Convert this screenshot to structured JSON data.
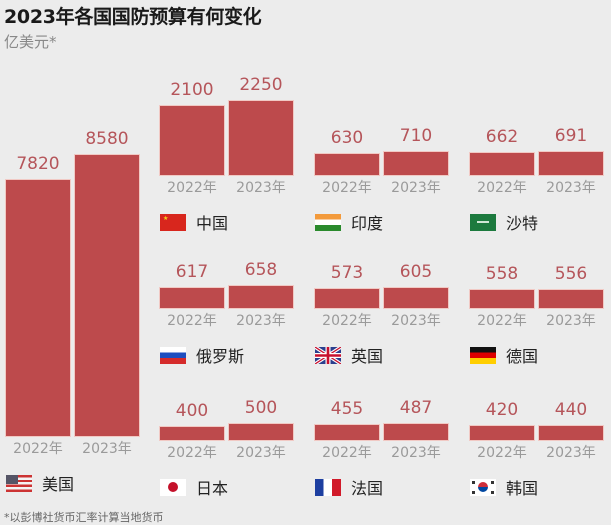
{
  "title": "2023年各国国防预算有何变化",
  "subtitle": "亿美元*",
  "footnote": "*以彭博社货币汇率计算当地货币",
  "year_labels": [
    "2022年",
    "2023年"
  ],
  "colors": {
    "bar": "#bd4a4c",
    "value_text": "#b5555a",
    "background": "#ececec"
  },
  "chart_data": {
    "type": "bar",
    "title": "2023年各国国防预算有何变化",
    "ylabel": "亿美元*",
    "categories": [
      "2022年",
      "2023年"
    ],
    "grid": false,
    "series": [
      {
        "name": "美国",
        "flag": "us-flag-icon",
        "values": [
          7820,
          8580
        ]
      },
      {
        "name": "中国",
        "flag": "china-flag-icon",
        "values": [
          2100,
          2250
        ]
      },
      {
        "name": "印度",
        "flag": "india-flag-icon",
        "values": [
          630,
          710
        ]
      },
      {
        "name": "沙特",
        "flag": "saudi-flag-icon",
        "values": [
          662,
          691
        ]
      },
      {
        "name": "俄罗斯",
        "flag": "russia-flag-icon",
        "values": [
          617,
          658
        ]
      },
      {
        "name": "英国",
        "flag": "uk-flag-icon",
        "values": [
          573,
          605
        ]
      },
      {
        "name": "德国",
        "flag": "germany-flag-icon",
        "values": [
          558,
          556
        ]
      },
      {
        "name": "日本",
        "flag": "japan-flag-icon",
        "values": [
          400,
          500
        ]
      },
      {
        "name": "法国",
        "flag": "france-flag-icon",
        "values": [
          455,
          487
        ]
      },
      {
        "name": "韩国",
        "flag": "korea-flag-icon",
        "values": [
          420,
          440
        ]
      }
    ],
    "footnote": "*以彭博社货币汇率计算当地货币"
  }
}
